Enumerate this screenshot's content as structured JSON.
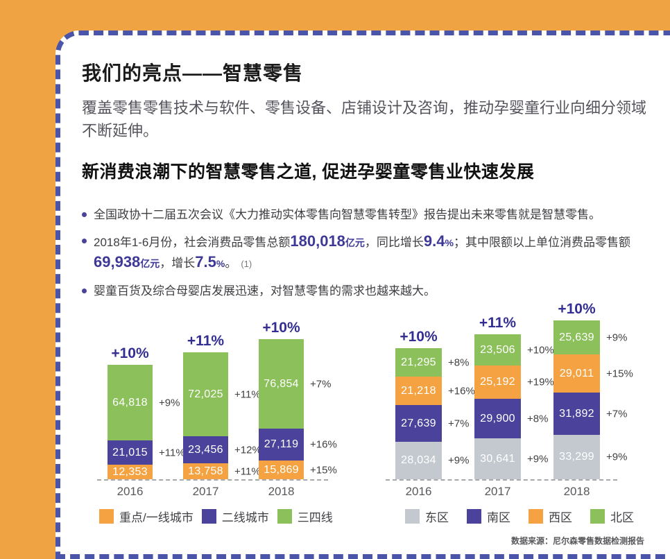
{
  "page": {
    "background_color": "#F0A342",
    "card_border_color": "#4A54A9",
    "card_background": "#FFFFFF"
  },
  "header": {
    "title": "我们的亮点——智慧零售",
    "subtitle": "覆盖零售零售技术与软件、零售设备、店铺设计及咨询，推动孕婴童行业向细分领域不断延伸。"
  },
  "section": {
    "title": "新消费浪潮下的智慧零售之道, 促进孕婴童零售业快速发展"
  },
  "bullets": [
    {
      "segments": [
        {
          "text": "全国政协十二届五次会议《大力推动实体零售向智慧零售转型》报告提出未来零售就是智慧零售。",
          "style": "text"
        }
      ]
    },
    {
      "segments": [
        {
          "text": "2018年1-6月份，社会消费品零售总额",
          "style": "text"
        },
        {
          "text": "180,018",
          "style": "num-lg"
        },
        {
          "text": "亿元",
          "style": "num-sm"
        },
        {
          "text": "，同比增长",
          "style": "text"
        },
        {
          "text": "9.4",
          "style": "num-lg"
        },
        {
          "text": "%",
          "style": "num-sm"
        },
        {
          "text": "；其中限额以上单位消费品零售额",
          "style": "text"
        },
        {
          "text": "69,938",
          "style": "num-lg"
        },
        {
          "text": "亿元",
          "style": "num-sm"
        },
        {
          "text": "，增长",
          "style": "text"
        },
        {
          "text": "7.5",
          "style": "num-lg"
        },
        {
          "text": "%",
          "style": "num-sm"
        },
        {
          "text": "。",
          "style": "text"
        },
        {
          "text": "(1)",
          "style": "footnote"
        }
      ]
    },
    {
      "segments": [
        {
          "text": "婴童百货及综合母婴店发展迅速，对智慧零售的需求也越来越大。",
          "style": "text"
        }
      ]
    }
  ],
  "chart_data": [
    {
      "type": "stacked-bar",
      "title": "",
      "categories": [
        "2016",
        "2017",
        "2018"
      ],
      "legend_position": "bottom",
      "grid": false,
      "series": [
        {
          "name": "重点/一线城市",
          "color": "#F5A342",
          "values": [
            12353,
            13758,
            15869
          ],
          "growth_labels": [
            "",
            "+11%",
            "+15%"
          ]
        },
        {
          "name": "二线城市",
          "color": "#4B439B",
          "values": [
            21015,
            23456,
            27119
          ],
          "growth_labels": [
            "+11%",
            "+12%",
            "+16%"
          ]
        },
        {
          "name": "三四线",
          "color": "#8BC05A",
          "values": [
            64818,
            72025,
            76854
          ],
          "growth_labels": [
            "+9%",
            "+11%",
            "+7%"
          ]
        }
      ],
      "total_growth_labels": [
        "+10%",
        "+11%",
        "+10%"
      ]
    },
    {
      "type": "stacked-bar",
      "title": "",
      "categories": [
        "2016",
        "2017",
        "2018"
      ],
      "legend_position": "bottom",
      "grid": false,
      "series": [
        {
          "name": "东区",
          "color": "#C3C9CF",
          "values": [
            28034,
            30641,
            33299
          ],
          "growth_labels": [
            "+9%",
            "+9%",
            "+9%"
          ]
        },
        {
          "name": "南区",
          "color": "#4B439B",
          "values": [
            27639,
            29900,
            31892
          ],
          "growth_labels": [
            "+7%",
            "+8%",
            "+7%"
          ]
        },
        {
          "name": "西区",
          "color": "#F5A342",
          "values": [
            21218,
            25192,
            29011
          ],
          "growth_labels": [
            "+16%",
            "+19%",
            "+15%"
          ]
        },
        {
          "name": "北区",
          "color": "#8BC05A",
          "values": [
            21295,
            23506,
            25639
          ],
          "growth_labels": [
            "+8%",
            "+10%",
            "+9%"
          ]
        }
      ],
      "total_growth_labels": [
        "+10%",
        "+11%",
        "+10%"
      ]
    }
  ],
  "source": "数据来源：尼尔森零售数据检测报告"
}
